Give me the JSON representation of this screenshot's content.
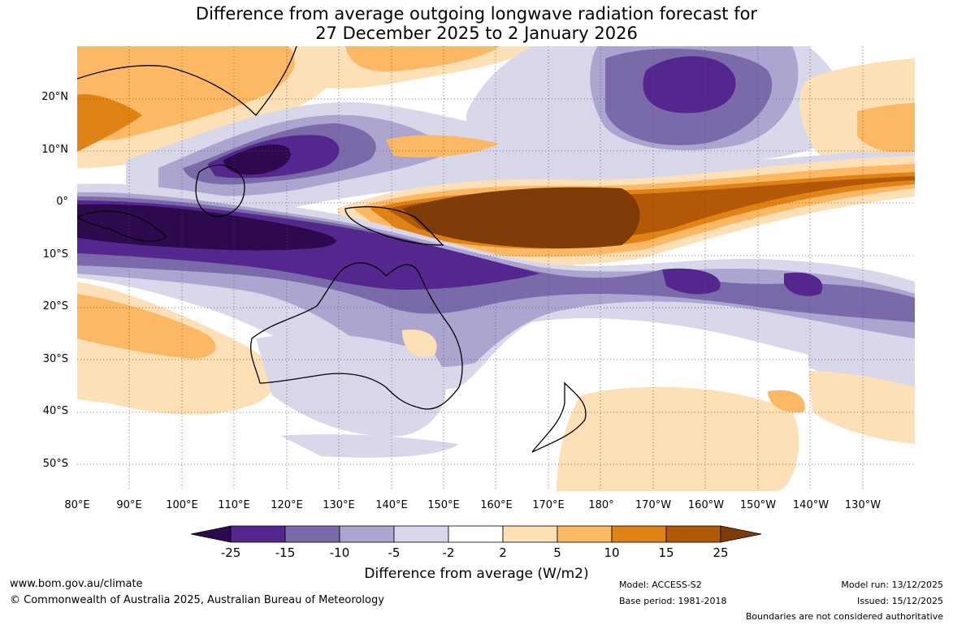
{
  "title": {
    "line1": "Difference from average outgoing longwave radiation forecast for",
    "line2": "27 December 2025 to 2 January 2026"
  },
  "map": {
    "lat_labels": [
      "20°N",
      "10°N",
      "0°",
      "10°S",
      "20°S",
      "30°S",
      "40°S",
      "50°S"
    ],
    "lon_labels": [
      "80°E",
      "90°E",
      "100°E",
      "110°E",
      "120°E",
      "130°E",
      "140°E",
      "150°E",
      "160°E",
      "170°E",
      "180°",
      "170°W",
      "160°W",
      "150°W",
      "140°W",
      "130°W"
    ]
  },
  "colorbar": {
    "labels": [
      "-25",
      "-15",
      "-10",
      "-5",
      "-2",
      "2",
      "5",
      "10",
      "15",
      "25"
    ],
    "colors": [
      "#2d0a4e",
      "#54278f",
      "#7a6aaa",
      "#aca5d0",
      "#d9d8ea",
      "#ffffff",
      "#fee0b6",
      "#fdb863",
      "#e08214",
      "#b35806",
      "#7f3b08"
    ],
    "title": "Difference from average (W/m2)"
  },
  "footer": {
    "website": "www.bom.gov.au/climate",
    "copyright": "© Commonwealth of Australia 2025, Australian Bureau of Meteorology",
    "model": "Model: ACCESS-S2",
    "base_period": "Base period: 1981-2018",
    "model_run": "Model run: 13/12/2025",
    "issued": "Issued: 15/12/2025",
    "disclaimer": "Boundaries are not considered authoritative"
  }
}
